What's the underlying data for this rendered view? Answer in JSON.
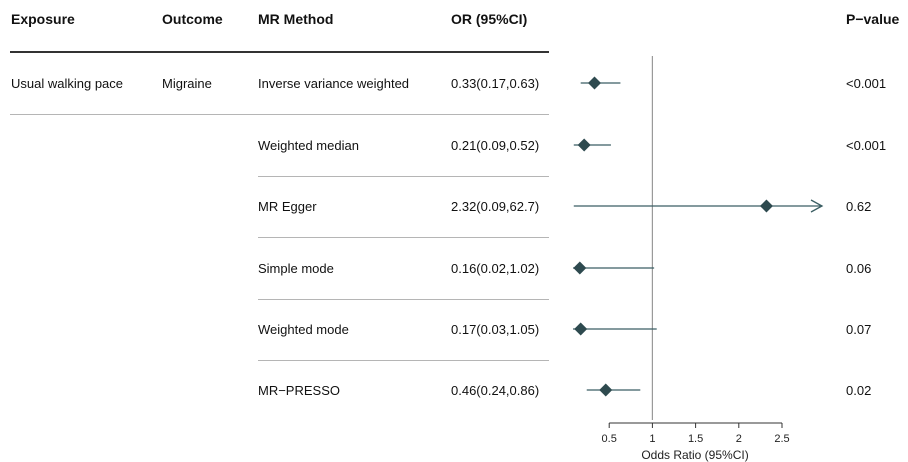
{
  "headers": {
    "exposure": "Exposure",
    "outcome": "Outcome",
    "method": "MR Method",
    "or": "OR (95%CI)",
    "pvalue": "P−value"
  },
  "exposure": "Usual walking pace",
  "outcome": "Migraine",
  "rows": [
    {
      "method": "Inverse variance weighted",
      "or_text": "0.33(0.17,0.63)",
      "p": "<0.001"
    },
    {
      "method": "Weighted median",
      "or_text": "0.21(0.09,0.52)",
      "p": "<0.001"
    },
    {
      "method": "MR Egger",
      "or_text": "2.32(0.09,62.7)",
      "p": "0.62"
    },
    {
      "method": "Simple mode",
      "or_text": "0.16(0.02,1.02)",
      "p": "0.06"
    },
    {
      "method": "Weighted mode",
      "or_text": "0.17(0.03,1.05)",
      "p": "0.07"
    },
    {
      "method": "MR−PRESSO",
      "or_text": "0.46(0.24,0.86)",
      "p": "0.02"
    }
  ],
  "chart_data": {
    "type": "forest",
    "xlabel": "Odds Ratio (95%CI)",
    "ticks": [
      "0.5",
      "1",
      "1.5",
      "2",
      "2.5"
    ],
    "reference_line": 1,
    "categories": [
      "Inverse variance weighted",
      "Weighted median",
      "MR Egger",
      "Simple mode",
      "Weighted mode",
      "MR−PRESSO"
    ],
    "estimates": [
      0.33,
      0.21,
      2.32,
      0.16,
      0.17,
      0.46
    ],
    "lower": [
      0.17,
      0.09,
      0.09,
      0.02,
      0.03,
      0.24
    ],
    "upper": [
      0.63,
      0.52,
      62.7,
      1.02,
      1.05,
      0.86
    ],
    "xlim": [
      0.0,
      2.6
    ],
    "colors": {
      "marker": "#2e4a4f",
      "whisker": "#3b5e63",
      "refline": "#9a9a9a"
    }
  }
}
